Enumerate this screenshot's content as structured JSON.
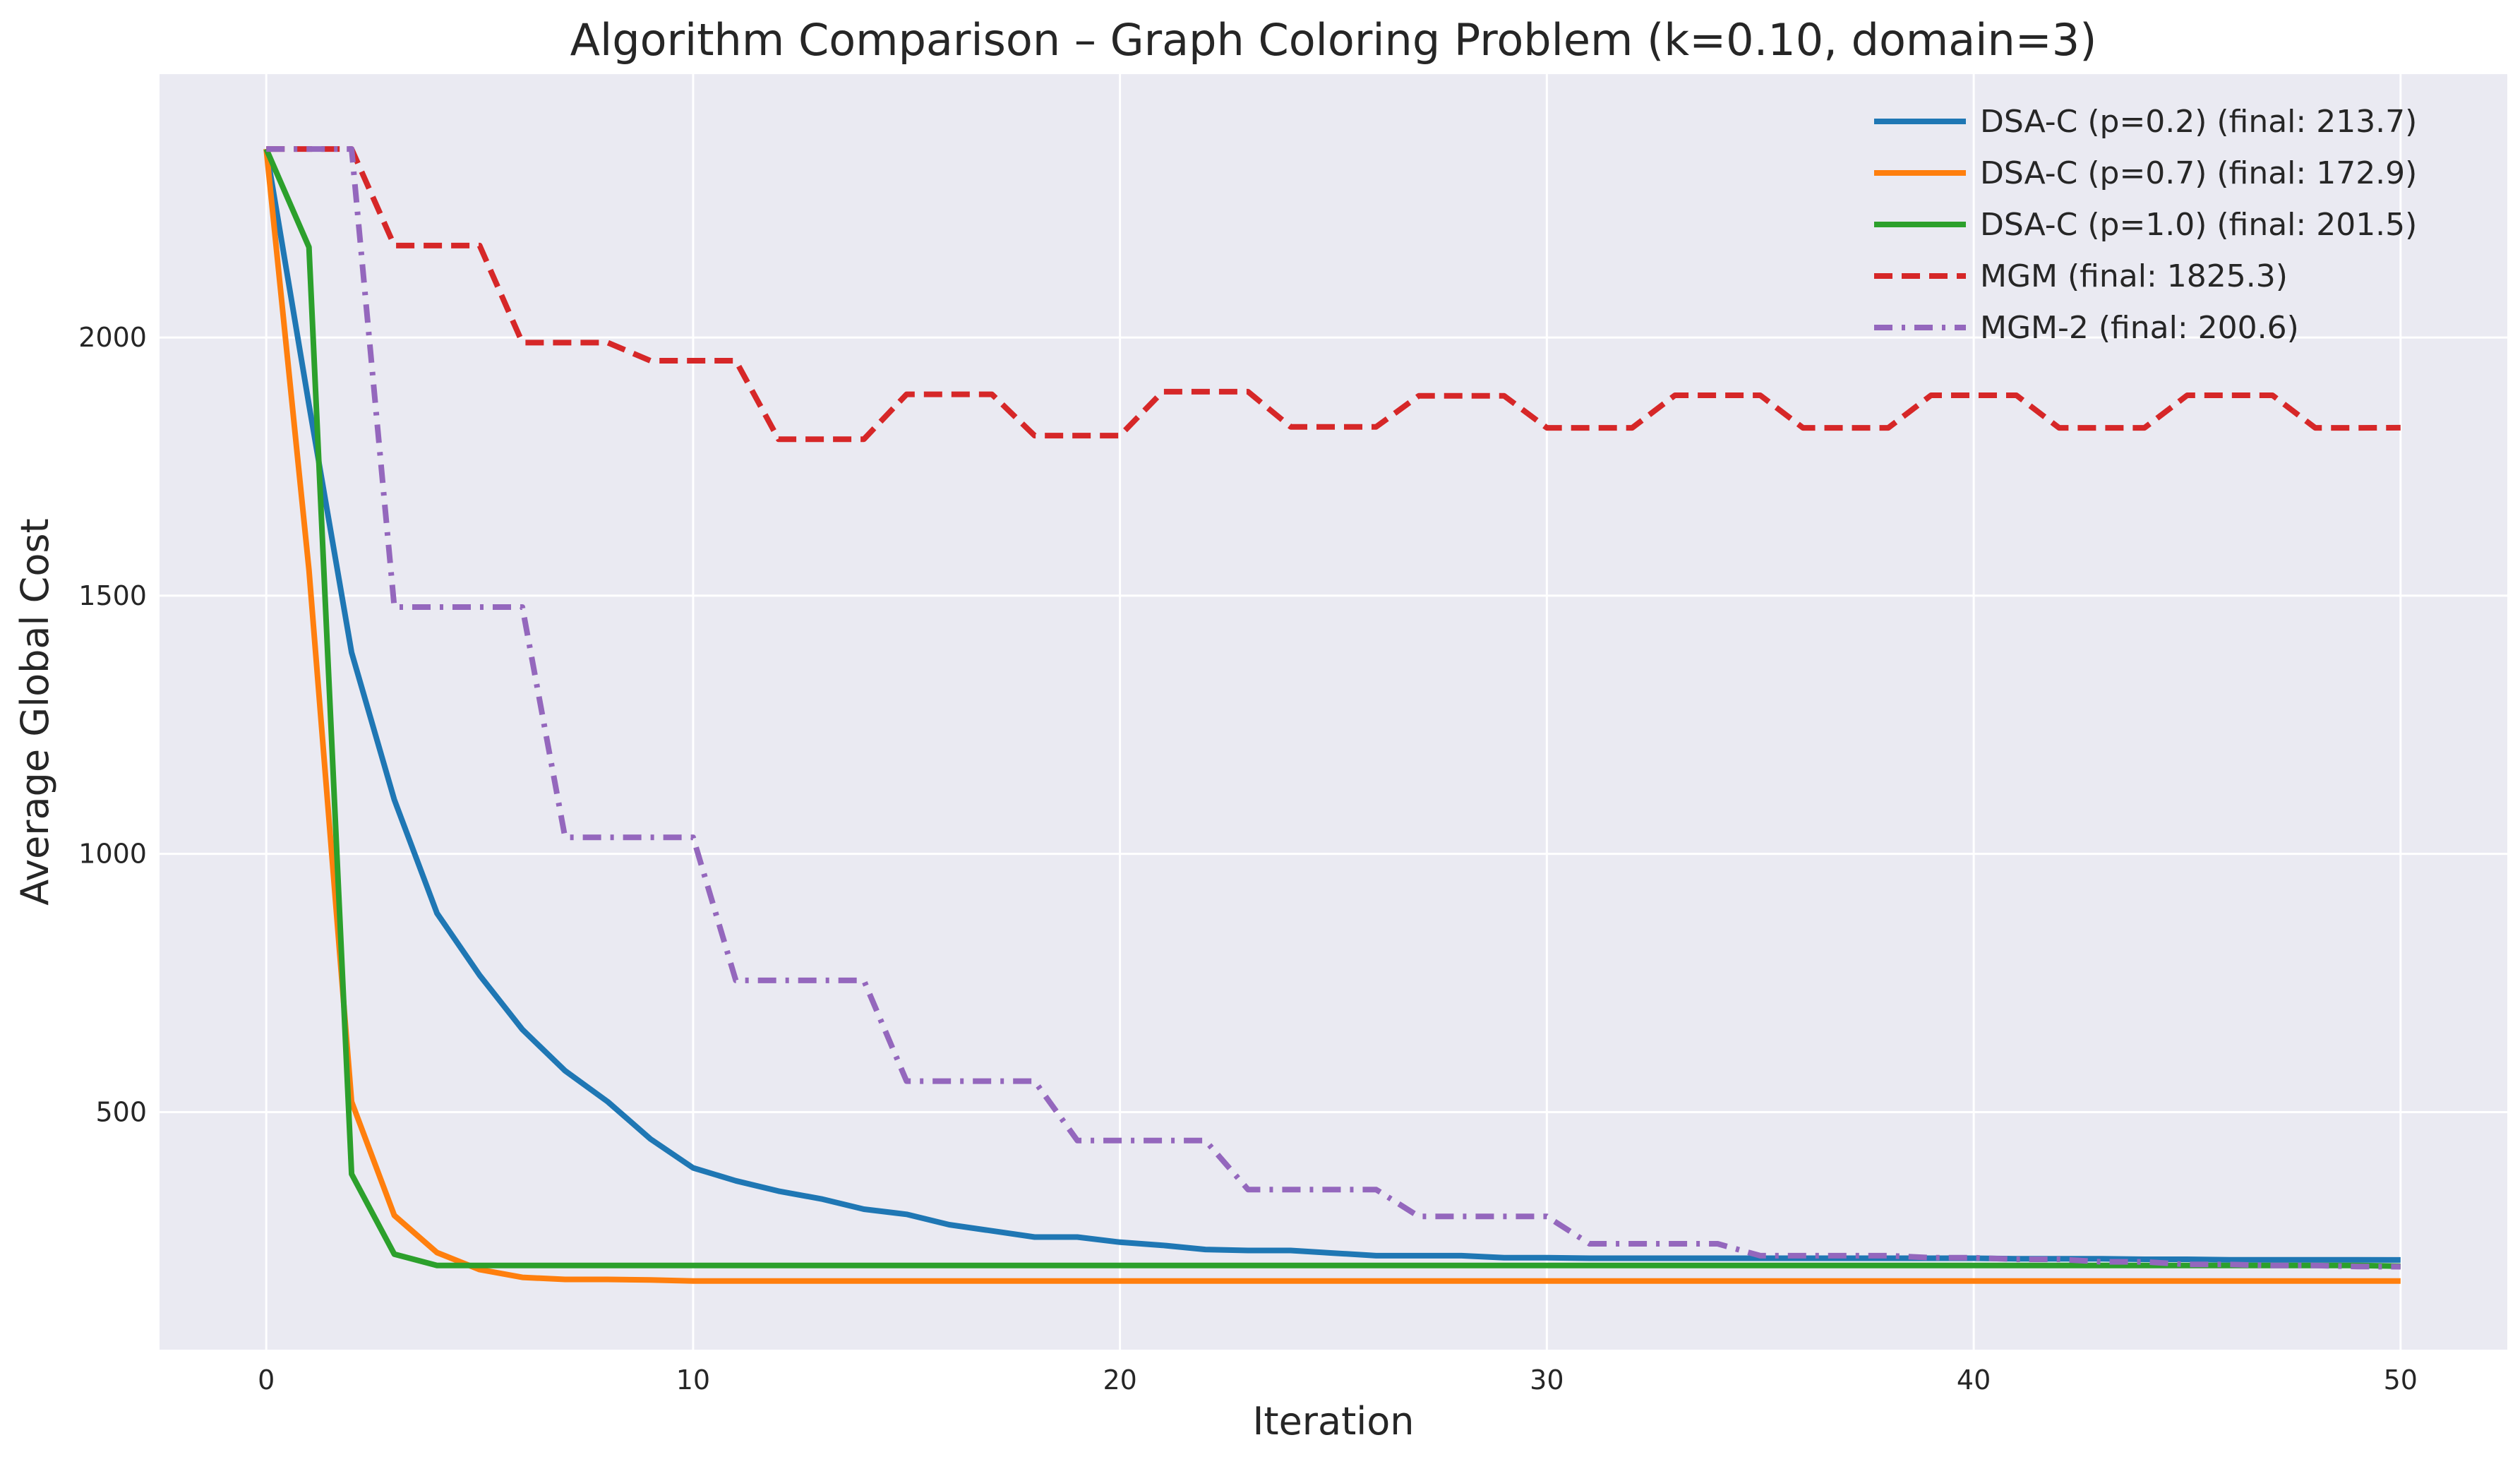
{
  "chart_data": {
    "type": "line",
    "title": "Algorithm Comparison – Graph Coloring Problem (k=0.10, domain=3)",
    "xlabel": "Iteration",
    "ylabel": "Average Global Cost",
    "xlim": [
      -2.5,
      52.5
    ],
    "ylim": [
      40,
      2510
    ],
    "xticks": [
      0,
      10,
      20,
      30,
      40,
      50
    ],
    "yticks": [
      500,
      1000,
      1500,
      2000
    ],
    "grid": true,
    "legend_position": "top-right",
    "x": [
      0,
      1,
      2,
      3,
      4,
      5,
      6,
      7,
      8,
      9,
      10,
      11,
      12,
      13,
      14,
      15,
      16,
      17,
      18,
      19,
      20,
      21,
      22,
      23,
      24,
      25,
      26,
      27,
      28,
      29,
      30,
      31,
      32,
      33,
      34,
      35,
      36,
      37,
      38,
      39,
      40,
      41,
      42,
      43,
      44,
      45,
      46,
      47,
      48,
      49,
      50
    ],
    "series": [
      {
        "name": "DSA-C (p=0.2) (final: 213.7)",
        "color": "#1f77b4",
        "style": "solid",
        "values": [
          2365,
          1870,
          1390,
          1105,
          885,
          765,
          660,
          580,
          520,
          448,
          392,
          367,
          347,
          332,
          312,
          302,
          282,
          270,
          258,
          258,
          248,
          242,
          234,
          232,
          232,
          227,
          222,
          222,
          222,
          218,
          218,
          217,
          217,
          217,
          217,
          217,
          217,
          217,
          217,
          217,
          217,
          216,
          216,
          216,
          215,
          215,
          214,
          214,
          214,
          214,
          213.7
        ]
      },
      {
        "name": "DSA-C (p=0.7) (final: 172.9)",
        "color": "#ff7f0e",
        "style": "solid",
        "values": [
          2365,
          1550,
          520,
          300,
          228,
          195,
          180,
          176,
          176,
          175,
          173,
          173,
          173,
          173,
          173,
          173,
          173,
          173,
          173,
          173,
          173,
          173,
          173,
          173,
          173,
          173,
          173,
          173,
          173,
          173,
          173,
          173,
          173,
          173,
          173,
          173,
          173,
          173,
          173,
          173,
          173,
          173,
          173,
          173,
          173,
          173,
          173,
          173,
          173,
          173,
          172.9
        ]
      },
      {
        "name": "DSA-C (p=1.0) (final: 201.5)",
        "color": "#2ca02c",
        "style": "solid",
        "values": [
          2365,
          2175,
          380,
          225,
          203,
          203,
          203,
          203,
          203,
          203,
          203,
          203,
          203,
          203,
          203,
          203,
          203,
          203,
          203,
          203,
          203,
          203,
          203,
          203,
          203,
          203,
          203,
          203,
          203,
          203,
          203,
          203,
          203,
          203,
          203,
          203,
          203,
          203,
          203,
          203,
          203,
          203,
          203,
          203,
          203,
          203,
          203,
          203,
          203,
          203,
          201.5
        ]
      },
      {
        "name": "MGM (final: 1825.3)",
        "color": "#d62728",
        "style": "dashed",
        "values": [
          2365,
          2365,
          2365,
          2178,
          2178,
          2178,
          1990,
          1990,
          1990,
          1955,
          1955,
          1955,
          1803,
          1803,
          1803,
          1890,
          1890,
          1890,
          1810,
          1810,
          1810,
          1895,
          1895,
          1895,
          1827,
          1827,
          1827,
          1887,
          1887,
          1887,
          1825,
          1825,
          1825,
          1888,
          1888,
          1888,
          1825,
          1825,
          1825,
          1888,
          1888,
          1888,
          1825,
          1825,
          1825,
          1888,
          1888,
          1888,
          1825,
          1825,
          1825.3
        ]
      },
      {
        "name": "MGM-2 (final: 200.6)",
        "color": "#9467bd",
        "style": "dashdot",
        "values": [
          2365,
          2365,
          2365,
          1478,
          1478,
          1478,
          1478,
          1032,
          1032,
          1032,
          1032,
          755,
          755,
          755,
          755,
          560,
          560,
          560,
          560,
          445,
          445,
          445,
          445,
          350,
          350,
          350,
          350,
          298,
          298,
          298,
          298,
          245,
          245,
          245,
          245,
          222,
          222,
          222,
          222,
          218,
          218,
          215,
          215,
          210,
          210,
          205,
          205,
          203,
          203,
          201,
          200.6
        ]
      }
    ]
  }
}
